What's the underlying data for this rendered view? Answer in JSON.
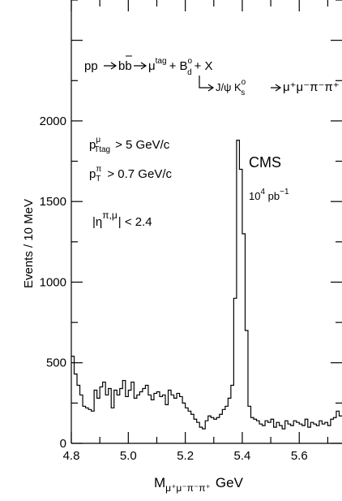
{
  "chart_data": {
    "type": "histogram",
    "title": "",
    "xlabel": "M",
    "xlabel_sub": "μ⁺μ⁻π⁻π⁺",
    "xlabel_unit": "GeV",
    "ylabel": "Events / 10 MeV",
    "xlim": [
      4.8,
      5.75
    ],
    "ylim": [
      0,
      2750
    ],
    "x_ticks": [
      "4.8",
      "5.0",
      "5.2",
      "5.4",
      "5.6"
    ],
    "y_ticks": [
      "0",
      "500",
      "1000",
      "1500",
      "2000"
    ],
    "bin_width": 0.01,
    "bin_start": 4.8,
    "bin_values": [
      540,
      430,
      360,
      300,
      230,
      220,
      210,
      200,
      330,
      280,
      350,
      380,
      300,
      340,
      220,
      330,
      300,
      340,
      390,
      290,
      330,
      380,
      280,
      300,
      320,
      340,
      360,
      300,
      270,
      310,
      320,
      290,
      300,
      240,
      330,
      300,
      280,
      310,
      290,
      250,
      220,
      200,
      180,
      150,
      130,
      100,
      90,
      140,
      170,
      160,
      150,
      160,
      180,
      210,
      230,
      280,
      360,
      900,
      1880,
      1700,
      1300,
      700,
      230,
      160,
      150,
      140,
      120,
      110,
      140,
      130,
      150,
      100,
      130,
      110,
      90,
      140,
      120,
      110,
      140,
      130,
      120,
      110,
      150,
      100,
      130,
      120,
      110,
      140,
      120,
      130,
      110,
      150,
      160,
      200,
      170,
      110,
      130,
      140,
      190,
      150,
      120,
      130
    ],
    "annotations": {
      "reaction_line1": {
        "a": "pp",
        "b": "b",
        "bbar": "b",
        "c": "μ",
        "c_sup": "tag",
        "plus1": "+ B",
        "B_sub": "d",
        "B_sup": "o",
        "plus2": "+ X"
      },
      "reaction_line2": {
        "jpsi": "J/ψ K",
        "K_sub": "s",
        "K_sup": "o",
        "final": "μ⁺μ⁻π⁻π⁺"
      },
      "cut1": {
        "p": "p",
        "p_sup": "μ",
        "p_sub": "T",
        "p_sub2": "tag",
        "rest": "> 5 GeV/c"
      },
      "cut2": {
        "p": "p",
        "p_sup": "π",
        "p_sub": "T",
        "rest": "> 0.7 GeV/c"
      },
      "cut3": {
        "a": "|η",
        "a_sup": "π,μ",
        "rest": "| < 2.4"
      },
      "experiment": "CMS",
      "lumi": {
        "base": "10",
        "exp": "4",
        "unit": " pb",
        "unit_exp": "−1"
      }
    }
  }
}
